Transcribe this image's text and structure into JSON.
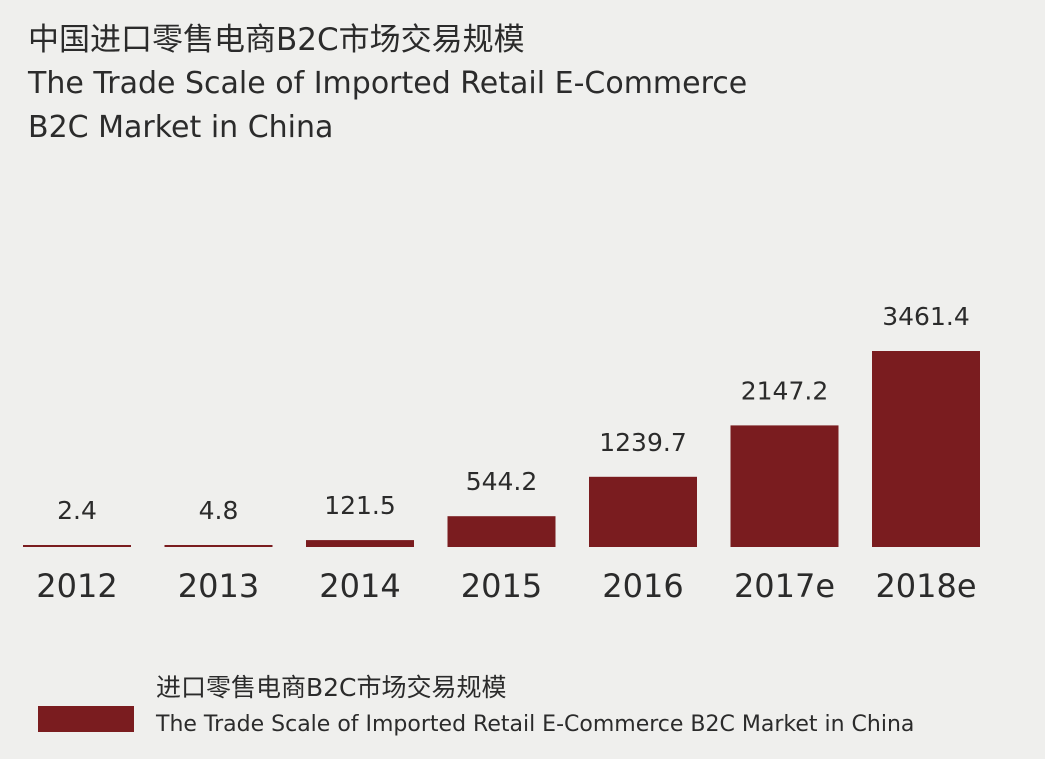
{
  "colors": {
    "bar": "#7a1c1f",
    "text": "#2b2b2b",
    "background": "#efefed"
  },
  "chart_data": {
    "type": "bar",
    "title": "中国进口零售电商B2C市场交易规模",
    "subtitle_lines": [
      "The Trade Scale  of Imported Retail E-Commerce",
      "B2C Market in China"
    ],
    "categories": [
      "2012",
      "2013",
      "2014",
      "2015",
      "2016",
      "2017e",
      "2018e"
    ],
    "values": [
      2.4,
      4.8,
      121.5,
      544.2,
      1239.7,
      2147.2,
      3461.4
    ],
    "data_labels": [
      "2.4",
      "4.8",
      "121.5",
      "544.2",
      "1239.7",
      "2147.2",
      "3461.4"
    ],
    "series": [
      {
        "name_cn": "进口零售电商B2C市场交易规模",
        "name_en": "The Trade Scale of Imported Retail E-Commerce B2C Market in China"
      }
    ],
    "ylim": [
      0,
      3461.4
    ],
    "grid": false,
    "legend_position": "bottom-left"
  }
}
